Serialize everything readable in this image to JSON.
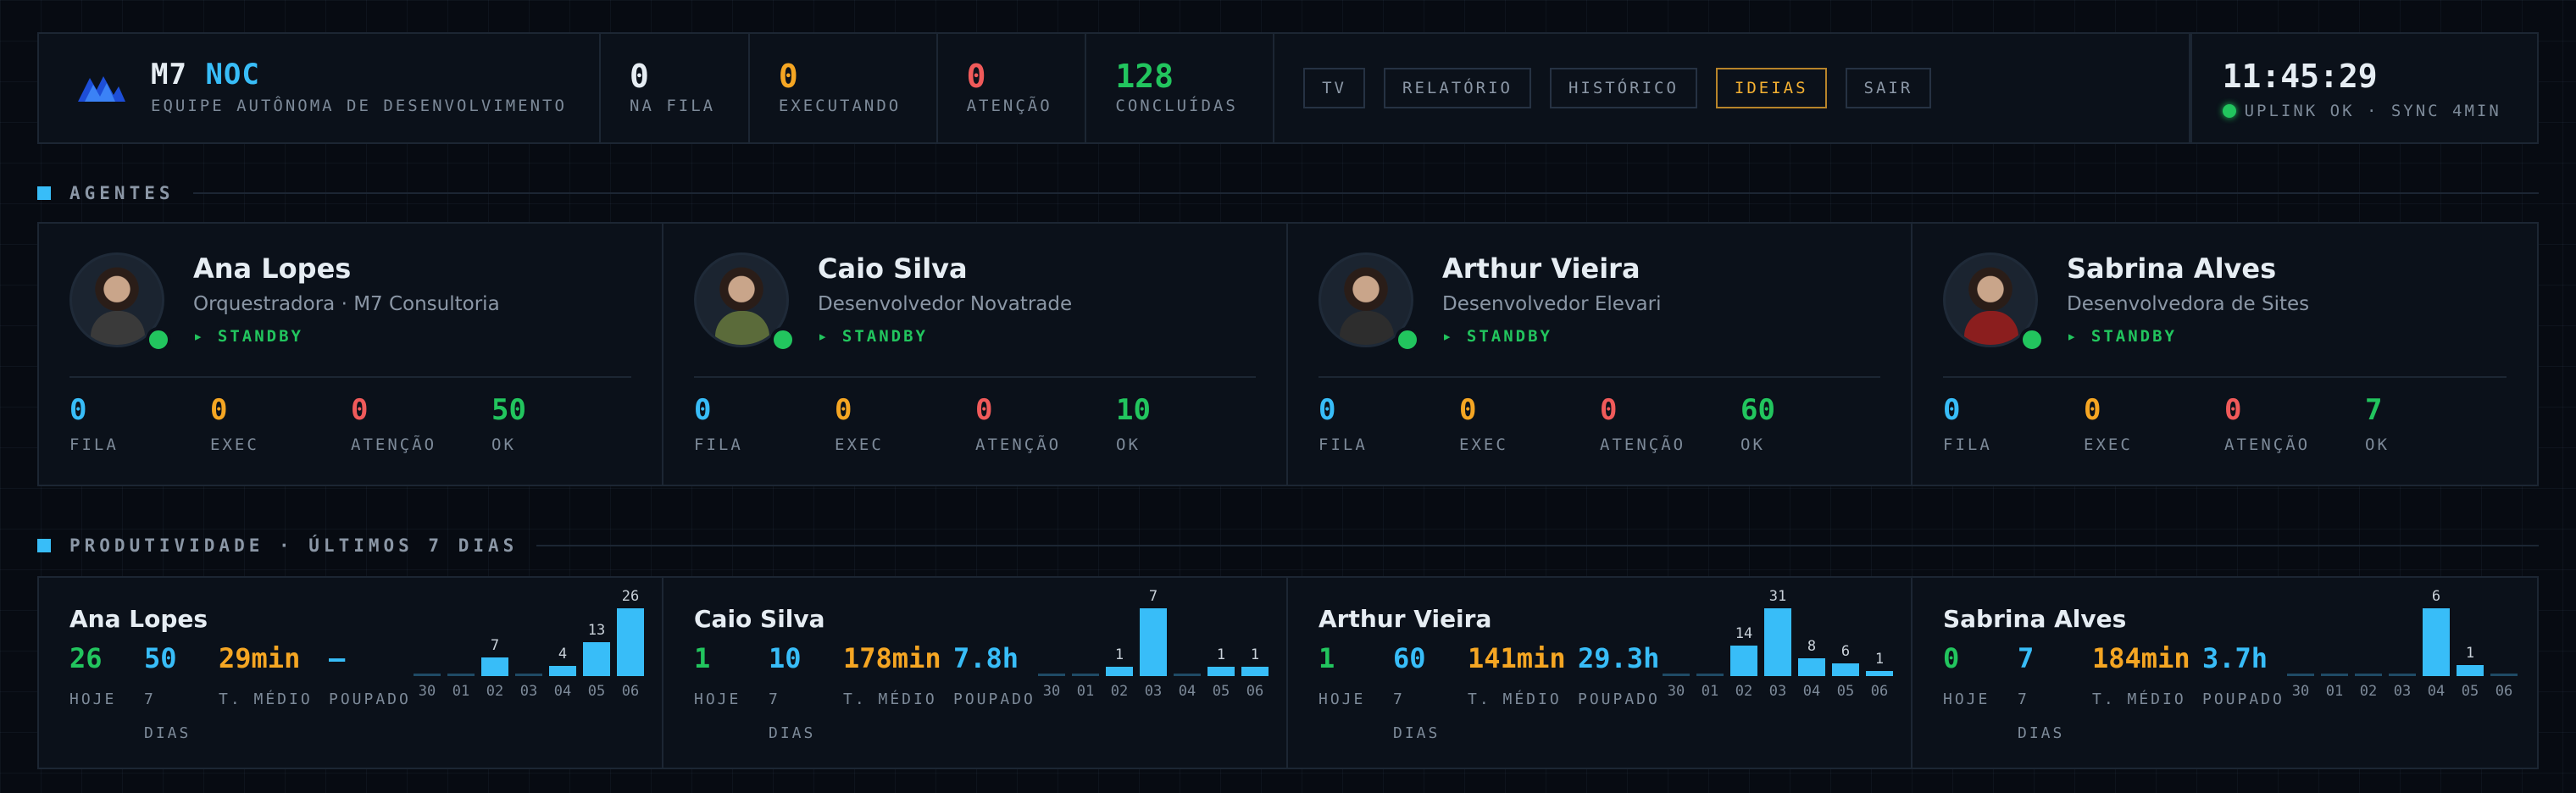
{
  "header": {
    "brand_title": "M7",
    "brand_accent": "NOC",
    "brand_subtitle": "EQUIPE AUTÔNOMA DE DESENVOLVIMENTO",
    "stats": [
      {
        "value": "0",
        "label": "NA FILA",
        "color": "#e6edf3"
      },
      {
        "value": "0",
        "label": "EXECUTANDO",
        "color": "#f5a623"
      },
      {
        "value": "0",
        "label": "ATENÇÃO",
        "color": "#f05a5a"
      },
      {
        "value": "128",
        "label": "CONCLUÍDAS",
        "color": "#22c55e"
      }
    ],
    "nav": [
      "TV",
      "RELATÓRIO",
      "HISTÓRICO",
      "IDEIAS",
      "SAIR"
    ],
    "nav_active": "IDEIAS",
    "clock": "11:45:29",
    "status": "UPLINK OK · SYNC 4MIN"
  },
  "sections": {
    "agents": "AGENTES",
    "productivity": "PRODUTIVIDADE · ÚLTIMOS 7 DIAS"
  },
  "agents": [
    {
      "name": "Ana Lopes",
      "role": "Orquestradora · M7 Consultoria",
      "state": "▸ STANDBY",
      "metrics": [
        {
          "v": "0",
          "l": "FILA"
        },
        {
          "v": "0",
          "l": "EXEC"
        },
        {
          "v": "0",
          "l": "ATENÇÃO"
        },
        {
          "v": "50",
          "l": "OK"
        }
      ]
    },
    {
      "name": "Caio Silva",
      "role": "Desenvolvedor Novatrade",
      "state": "▸ STANDBY",
      "metrics": [
        {
          "v": "0",
          "l": "FILA"
        },
        {
          "v": "0",
          "l": "EXEC"
        },
        {
          "v": "0",
          "l": "ATENÇÃO"
        },
        {
          "v": "10",
          "l": "OK"
        }
      ]
    },
    {
      "name": "Arthur Vieira",
      "role": "Desenvolvedor Elevari",
      "state": "▸ STANDBY",
      "metrics": [
        {
          "v": "0",
          "l": "FILA"
        },
        {
          "v": "0",
          "l": "EXEC"
        },
        {
          "v": "0",
          "l": "ATENÇÃO"
        },
        {
          "v": "60",
          "l": "OK"
        }
      ]
    },
    {
      "name": "Sabrina Alves",
      "role": "Desenvolvedora de Sites",
      "state": "▸ STANDBY",
      "metrics": [
        {
          "v": "0",
          "l": "FILA"
        },
        {
          "v": "0",
          "l": "EXEC"
        },
        {
          "v": "0",
          "l": "ATENÇÃO"
        },
        {
          "v": "7",
          "l": "OK"
        }
      ]
    }
  ],
  "productivity": [
    {
      "name": "Ana Lopes",
      "metrics": [
        {
          "v": "26",
          "l": "HOJE"
        },
        {
          "v": "50",
          "l": "7 DIAS"
        },
        {
          "v": "29min",
          "l": "T. MÉDIO"
        },
        {
          "v": "—",
          "l": "POUPADO"
        }
      ]
    },
    {
      "name": "Caio Silva",
      "metrics": [
        {
          "v": "1",
          "l": "HOJE"
        },
        {
          "v": "10",
          "l": "7 DIAS"
        },
        {
          "v": "178min",
          "l": "T. MÉDIO"
        },
        {
          "v": "7.8h",
          "l": "POUPADO"
        }
      ]
    },
    {
      "name": "Arthur Vieira",
      "metrics": [
        {
          "v": "1",
          "l": "HOJE"
        },
        {
          "v": "60",
          "l": "7 DIAS"
        },
        {
          "v": "141min",
          "l": "T. MÉDIO"
        },
        {
          "v": "29.3h",
          "l": "POUPADO"
        }
      ]
    },
    {
      "name": "Sabrina Alves",
      "metrics": [
        {
          "v": "0",
          "l": "HOJE"
        },
        {
          "v": "7",
          "l": "7 DIAS"
        },
        {
          "v": "184min",
          "l": "T. MÉDIO"
        },
        {
          "v": "3.7h",
          "l": "POUPADO"
        }
      ]
    }
  ],
  "metric_colors": [
    "#38bdf8",
    "#f5a623",
    "#f05a5a",
    "#22c55e"
  ],
  "prod_colors": [
    "#22c55e",
    "#38bdf8",
    "#f5a623",
    "#38bdf8"
  ],
  "chart_data": [
    {
      "type": "bar",
      "categories": [
        "30",
        "01",
        "02",
        "03",
        "04",
        "05",
        "06"
      ],
      "values": [
        0,
        0,
        7,
        0,
        4,
        13,
        26
      ]
    },
    {
      "type": "bar",
      "categories": [
        "30",
        "01",
        "02",
        "03",
        "04",
        "05",
        "06"
      ],
      "values": [
        0,
        0,
        1,
        7,
        0,
        1,
        1
      ]
    },
    {
      "type": "bar",
      "categories": [
        "30",
        "01",
        "02",
        "03",
        "04",
        "05",
        "06"
      ],
      "values": [
        0,
        0,
        14,
        31,
        8,
        6,
        1
      ]
    },
    {
      "type": "bar",
      "categories": [
        "30",
        "01",
        "02",
        "03",
        "04",
        "05",
        "06"
      ],
      "values": [
        0,
        0,
        0,
        0,
        6,
        1,
        0
      ]
    }
  ]
}
